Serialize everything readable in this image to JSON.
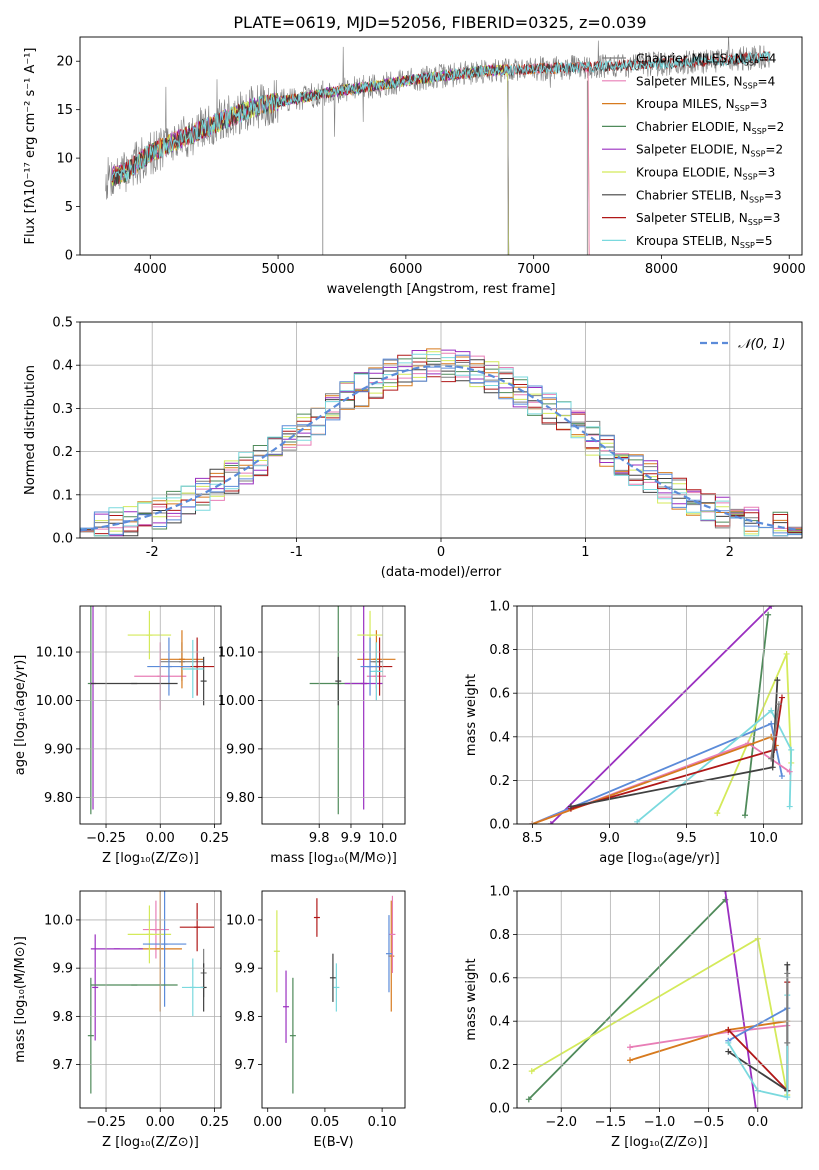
{
  "figure": {
    "title": "PLATE=0619, MJD=52056, FIBERID=0325, z=0.039",
    "colors": {
      "c0": "#7f7f7f",
      "c1": "#e87eb6",
      "c2": "#d77a1e",
      "c3": "#4f8a5a",
      "c4": "#9a2fc0",
      "c5": "#d4ea5a",
      "c6": "#404040",
      "c7": "#b01818",
      "c8": "#7ad9de",
      "normal": "#5b8bd9",
      "grid": "#b0b0b0",
      "blue": "#5b8bd9"
    }
  },
  "chart_data": [
    {
      "id": "spectrum",
      "type": "line",
      "xlabel": "wavelength [Angstrom, rest frame]",
      "ylabel": "Flux [fλ10⁻¹⁷ erg cm⁻² s⁻¹ A⁻¹]",
      "xlim": [
        3450,
        9100
      ],
      "ylim": [
        0,
        22.5
      ],
      "xticks": [
        4000,
        5000,
        6000,
        7000,
        8000,
        9000
      ],
      "yticks": [
        0,
        5,
        10,
        15,
        20
      ],
      "grid": false,
      "legend_position": "right",
      "legend": [
        {
          "text": "Chabrier MILES, N",
          "sub": "SSP",
          "tail": "=4",
          "color": "c0"
        },
        {
          "text": "Salpeter MILES, N",
          "sub": "SSP",
          "tail": "=4",
          "color": "c1"
        },
        {
          "text": "Kroupa MILES, N",
          "sub": "SSP",
          "tail": "=3",
          "color": "c2"
        },
        {
          "text": "Chabrier ELODIE, N",
          "sub": "SSP",
          "tail": "=2",
          "color": "c3"
        },
        {
          "text": "Salpeter ELODIE, N",
          "sub": "SSP",
          "tail": "=2",
          "color": "c4"
        },
        {
          "text": "Kroupa ELODIE, N",
          "sub": "SSP",
          "tail": "=3",
          "color": "c5"
        },
        {
          "text": "Chabrier STELIB, N",
          "sub": "SSP",
          "tail": "=3",
          "color": "c6"
        },
        {
          "text": "Salpeter STELIB, N",
          "sub": "SSP",
          "tail": "=3",
          "color": "c7"
        },
        {
          "text": "Kroupa STELIB, N",
          "sub": "SSP",
          "tail": "=5",
          "color": "c8"
        }
      ],
      "continuum": [
        [
          3650,
          7.8
        ],
        [
          3800,
          8.5
        ],
        [
          4000,
          10.5
        ],
        [
          4200,
          11.8
        ],
        [
          4500,
          13.5
        ],
        [
          4800,
          15.2
        ],
        [
          5000,
          15.8
        ],
        [
          5200,
          16.3
        ],
        [
          5500,
          17.0
        ],
        [
          5800,
          17.5
        ],
        [
          6000,
          18.0
        ],
        [
          6300,
          18.5
        ],
        [
          6600,
          19.0
        ],
        [
          7000,
          19.2
        ],
        [
          7400,
          19.4
        ],
        [
          7800,
          19.6
        ],
        [
          8200,
          19.9
        ],
        [
          8600,
          20.2
        ],
        [
          8850,
          20.5
        ]
      ],
      "data_noise": 1.3,
      "model_noise": 0.8,
      "data_range": [
        3650,
        8850
      ],
      "model_ranges": {
        "c0": [
          3700,
          8850
        ],
        "c1": [
          3700,
          7430
        ],
        "c2": [
          3700,
          7430
        ],
        "c3": [
          3700,
          6800
        ],
        "c4": [
          3700,
          6800
        ],
        "c5": [
          3700,
          6800
        ],
        "c6": [
          3700,
          8850
        ],
        "c7": [
          3700,
          8850
        ],
        "c8": [
          3700,
          8850
        ]
      },
      "spikes": [
        [
          5350,
          0
        ],
        [
          6800,
          0
        ],
        [
          7420,
          0
        ]
      ]
    },
    {
      "id": "residuals",
      "type": "histogram",
      "xlabel": "(data-model)/error",
      "ylabel": "Normed distribution",
      "xlim": [
        -2.5,
        2.5
      ],
      "ylim": [
        0,
        0.5
      ],
      "xticks": [
        -2,
        -1,
        0,
        1,
        2
      ],
      "yticks": [
        0.0,
        0.1,
        0.2,
        0.3,
        0.4,
        0.5
      ],
      "grid": true,
      "legend_position": "top-right",
      "legend": [
        {
          "text": "𝒩(0, 1)",
          "color": "normal",
          "style": "dashed"
        }
      ],
      "bin_width": 0.1,
      "jitter_amplitude": 0.04
    },
    {
      "id": "age_vs_Z",
      "type": "scatter",
      "xlabel": "Z [log₁₀(Z/Z⊙)]",
      "ylabel": "age  [log₁₀(age/yr)]",
      "xlim": [
        -0.37,
        0.28
      ],
      "ylim": [
        9.745,
        10.195
      ],
      "xticks": [
        -0.25,
        0.0,
        0.25
      ],
      "xticklabels": [
        "−0.25",
        "0.00",
        "0.25"
      ],
      "yticks": [
        9.8,
        9.9,
        10.0,
        10.1
      ],
      "grid": true,
      "points": [
        {
          "c": "c0",
          "x": 0.1,
          "xerr": 0.1,
          "y": 10.08,
          "yerr": 0.04
        },
        {
          "c": "c1",
          "x": 0.0,
          "xerr": 0.12,
          "y": 10.05,
          "yerr": 0.07
        },
        {
          "c": "c2",
          "x": 0.1,
          "xerr": 0.1,
          "y": 10.085,
          "yerr": 0.06
        },
        {
          "c": "c3",
          "x": -0.32,
          "xerr": 0.0,
          "y": 10.035,
          "yerr": 0.27
        },
        {
          "c": "c4",
          "x": -0.31,
          "xerr": 0.0,
          "y": 10.035,
          "yerr": 0.26
        },
        {
          "c": "c5",
          "x": -0.05,
          "xerr": 0.1,
          "y": 10.135,
          "yerr": 0.05
        },
        {
          "c": "c6",
          "x": 0.2,
          "xerr": 0.0,
          "y": 10.04,
          "yerr": 0.05
        },
        {
          "c": "c7",
          "x": 0.17,
          "xerr": 0.08,
          "y": 10.07,
          "yerr": 0.06
        },
        {
          "c": "c8",
          "x": 0.15,
          "xerr": 0.05,
          "y": 10.065,
          "yerr": 0.06
        },
        {
          "c": "blue",
          "x": 0.04,
          "xerr": 0.1,
          "y": 10.07,
          "yerr": 0.06
        },
        {
          "c": "c6",
          "x": -0.12,
          "xerr": 0.2,
          "y": 10.035,
          "yerr": 0.0
        }
      ]
    },
    {
      "id": "age_vs_mass",
      "type": "scatter",
      "xlabel": "mass [log₁₀(M/M⊙)]",
      "ylabel": "",
      "xlim": [
        9.62,
        10.07
      ],
      "ylim": [
        9.745,
        10.195
      ],
      "xticks": [
        9.8,
        9.9,
        10.0
      ],
      "xticklabels": [
        "9.8",
        "9.9",
        "10.0"
      ],
      "yticks": [
        9.8,
        9.9,
        10.0,
        10.1
      ],
      "grid": true,
      "points": [
        {
          "c": "c0",
          "x": 9.98,
          "xerr": 0.02,
          "y": 10.08,
          "yerr": 0.04
        },
        {
          "c": "c1",
          "x": 9.98,
          "xerr": 0.03,
          "y": 10.05,
          "yerr": 0.05
        },
        {
          "c": "c2",
          "x": 9.98,
          "xerr": 0.06,
          "y": 10.085,
          "yerr": 0.06
        },
        {
          "c": "c3",
          "x": 9.86,
          "xerr": 0.09,
          "y": 10.035,
          "yerr": 0.27
        },
        {
          "c": "c4",
          "x": 9.94,
          "xerr": 0.06,
          "y": 10.035,
          "yerr": 0.26
        },
        {
          "c": "c5",
          "x": 9.96,
          "xerr": 0.04,
          "y": 10.135,
          "yerr": 0.05
        },
        {
          "c": "c6",
          "x": 9.86,
          "xerr": 0.0,
          "y": 10.04,
          "yerr": 0.05
        },
        {
          "c": "c7",
          "x": 9.99,
          "xerr": 0.04,
          "y": 10.07,
          "yerr": 0.06
        },
        {
          "c": "c8",
          "x": 9.98,
          "xerr": 0.02,
          "y": 10.06,
          "yerr": 0.06
        },
        {
          "c": "blue",
          "x": 9.96,
          "xerr": 0.03,
          "y": 10.07,
          "yerr": 0.06
        }
      ]
    },
    {
      "id": "weight_vs_age",
      "type": "line",
      "xlabel": "age  [log₁₀(age/yr)]",
      "ylabel": "mass weight",
      "xlim": [
        8.4,
        10.25
      ],
      "ylim": [
        0,
        1
      ],
      "xticks": [
        8.5,
        9.0,
        9.5,
        10.0
      ],
      "xticklabels": [
        "8.5",
        "9.0",
        "9.5",
        "10.0"
      ],
      "yticks": [
        0.0,
        0.2,
        0.4,
        0.6,
        0.8,
        1.0
      ],
      "grid": true,
      "series": [
        {
          "c": "c4",
          "pts": [
            [
              8.62,
              0.0
            ],
            [
              10.05,
              1.0
            ]
          ]
        },
        {
          "c": "c3",
          "pts": [
            [
              9.88,
              0.04
            ],
            [
              10.03,
              0.96
            ]
          ]
        },
        {
          "c": "c5",
          "pts": [
            [
              9.7,
              0.05
            ],
            [
              10.15,
              0.78
            ],
            [
              10.18,
              0.28
            ]
          ]
        },
        {
          "c": "blue",
          "pts": [
            [
              8.5,
              0.0
            ],
            [
              10.05,
              0.46
            ],
            [
              10.12,
              0.22
            ]
          ]
        },
        {
          "c": "c8",
          "pts": [
            [
              9.18,
              0.01
            ],
            [
              10.05,
              0.52
            ],
            [
              10.18,
              0.34
            ],
            [
              10.17,
              0.08
            ]
          ]
        },
        {
          "c": "c1",
          "pts": [
            [
              8.5,
              0.0
            ],
            [
              9.9,
              0.37
            ],
            [
              10.17,
              0.24
            ]
          ]
        },
        {
          "c": "c2",
          "pts": [
            [
              8.5,
              0.0
            ],
            [
              10.05,
              0.4
            ],
            [
              10.08,
              0.36
            ]
          ]
        },
        {
          "c": "c7",
          "pts": [
            [
              8.75,
              0.07
            ],
            [
              10.07,
              0.34
            ],
            [
              10.12,
              0.58
            ]
          ]
        },
        {
          "c": "c6",
          "pts": [
            [
              8.75,
              0.08
            ],
            [
              10.06,
              0.26
            ],
            [
              10.09,
              0.66
            ]
          ]
        },
        {
          "c": "c0",
          "pts": [
            [
              10.05,
              0.3
            ],
            [
              10.1,
              0.55
            ]
          ]
        }
      ]
    },
    {
      "id": "mass_vs_Z",
      "type": "scatter",
      "xlabel": "Z [log₁₀(Z/Z⊙)]",
      "ylabel": "mass [log₁₀(M/M⊙)]",
      "xlim": [
        -0.37,
        0.28
      ],
      "ylim": [
        9.61,
        10.06
      ],
      "xticks": [
        -0.25,
        0.0,
        0.25
      ],
      "xticklabels": [
        "−0.25",
        "0.00",
        "0.25"
      ],
      "yticks": [
        9.7,
        9.8,
        9.9,
        10.0
      ],
      "grid": true,
      "points": [
        {
          "c": "c0",
          "x": 0.2,
          "xerr": 0.0,
          "y": 9.89,
          "yerr": 0.05
        },
        {
          "c": "c1",
          "x": -0.02,
          "xerr": 0.06,
          "y": 9.98,
          "yerr": 0.06
        },
        {
          "c": "c2",
          "x": 0.0,
          "xerr": 0.1,
          "y": 9.94,
          "yerr": 0.13
        },
        {
          "c": "c3",
          "x": -0.32,
          "xerr": 0.0,
          "y": 9.76,
          "yerr": 0.12
        },
        {
          "c": "c4",
          "x": -0.3,
          "xerr": 0.0,
          "y": 9.86,
          "yerr": 0.11
        },
        {
          "c": "c5",
          "x": -0.05,
          "xerr": 0.1,
          "y": 9.97,
          "yerr": 0.06
        },
        {
          "c": "c6",
          "x": 0.2,
          "xerr": 0.0,
          "y": 9.86,
          "yerr": 0.05
        },
        {
          "c": "c7",
          "x": 0.17,
          "xerr": 0.08,
          "y": 9.985,
          "yerr": 0.05
        },
        {
          "c": "c8",
          "x": 0.15,
          "xerr": 0.05,
          "y": 9.86,
          "yerr": 0.06
        },
        {
          "c": "blue",
          "x": 0.02,
          "xerr": 0.1,
          "y": 9.95,
          "yerr": 0.13
        },
        {
          "c": "c3",
          "x": -0.12,
          "xerr": 0.2,
          "y": 9.865,
          "yerr": 0.0
        },
        {
          "c": "c4",
          "x": -0.2,
          "xerr": 0.12,
          "y": 9.94,
          "yerr": 0.0
        }
      ]
    },
    {
      "id": "mass_vs_EBV",
      "type": "scatter",
      "xlabel": "E(B-V)",
      "ylabel": "",
      "xlim": [
        -0.005,
        0.12
      ],
      "ylim": [
        9.61,
        10.06
      ],
      "xticks": [
        0.0,
        0.05,
        0.1
      ],
      "xticklabels": [
        "0.00",
        "0.05",
        "0.10"
      ],
      "yticks": [
        9.7,
        9.8,
        9.9,
        10.0
      ],
      "grid": false,
      "points": [
        {
          "c": "c5",
          "x": 0.008,
          "xerr": 0.0,
          "y": 9.935,
          "yerr": 0.085
        },
        {
          "c": "c4",
          "x": 0.016,
          "xerr": 0.0,
          "y": 9.82,
          "yerr": 0.075
        },
        {
          "c": "c3",
          "x": 0.022,
          "xerr": 0.0,
          "y": 9.76,
          "yerr": 0.12
        },
        {
          "c": "c7",
          "x": 0.043,
          "xerr": 0.0,
          "y": 10.005,
          "yerr": 0.04
        },
        {
          "c": "c6",
          "x": 0.057,
          "xerr": 0.0,
          "y": 9.88,
          "yerr": 0.05
        },
        {
          "c": "c8",
          "x": 0.06,
          "xerr": 0.0,
          "y": 9.86,
          "yerr": 0.05
        },
        {
          "c": "c2",
          "x": 0.108,
          "xerr": 0.0,
          "y": 9.925,
          "yerr": 0.115
        },
        {
          "c": "c1",
          "x": 0.109,
          "xerr": 0.0,
          "y": 9.97,
          "yerr": 0.08
        },
        {
          "c": "blue",
          "x": 0.106,
          "xerr": 0.0,
          "y": 9.93,
          "yerr": 0.08
        }
      ]
    },
    {
      "id": "weight_vs_Z",
      "type": "line",
      "xlabel": "Z [log₁₀(Z/Z⊙)]",
      "ylabel": "mass weight",
      "xlim": [
        -2.45,
        0.45
      ],
      "ylim": [
        0,
        1
      ],
      "xticks": [
        -2.0,
        -1.5,
        -1.0,
        -0.5,
        0.0
      ],
      "xticklabels": [
        "−2.0",
        "−1.5",
        "−1.0",
        "−0.5",
        "0.0"
      ],
      "yticks": [
        0.0,
        0.2,
        0.4,
        0.6,
        0.8,
        1.0
      ],
      "grid": true,
      "series": [
        {
          "c": "c3",
          "pts": [
            [
              -2.33,
              0.04
            ],
            [
              -0.33,
              0.96
            ]
          ]
        },
        {
          "c": "c4",
          "pts": [
            [
              -0.33,
              1.0
            ],
            [
              -0.02,
              0.0
            ]
          ]
        },
        {
          "c": "c5",
          "pts": [
            [
              -2.3,
              0.17
            ],
            [
              -0.0,
              0.78
            ],
            [
              0.3,
              0.06
            ]
          ]
        },
        {
          "c": "c1",
          "pts": [
            [
              -1.3,
              0.28
            ],
            [
              -0.3,
              0.35
            ],
            [
              0.3,
              0.38
            ]
          ]
        },
        {
          "c": "c2",
          "pts": [
            [
              -1.3,
              0.22
            ],
            [
              -0.3,
              0.36
            ],
            [
              0.3,
              0.4
            ]
          ]
        },
        {
          "c": "blue",
          "pts": [
            [
              -0.3,
              0.31
            ],
            [
              0.3,
              0.46
            ]
          ]
        },
        {
          "c": "c7",
          "pts": [
            [
              -0.3,
              0.36
            ],
            [
              0.3,
              0.08
            ],
            [
              0.3,
              0.58
            ]
          ]
        },
        {
          "c": "c6",
          "pts": [
            [
              -0.3,
              0.26
            ],
            [
              0.3,
              0.08
            ],
            [
              0.3,
              0.66
            ]
          ]
        },
        {
          "c": "c8",
          "pts": [
            [
              -0.3,
              0.3
            ],
            [
              0.0,
              0.08
            ],
            [
              0.3,
              0.05
            ],
            [
              0.3,
              0.52
            ]
          ]
        },
        {
          "c": "c0",
          "pts": [
            [
              0.3,
              0.3
            ],
            [
              0.3,
              0.62
            ]
          ]
        }
      ]
    }
  ]
}
